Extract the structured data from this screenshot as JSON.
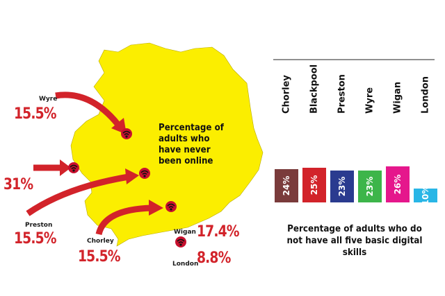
{
  "map": {
    "title": "Percentage of adults who have never been online",
    "colors": {
      "land": "#fbee00",
      "arrow": "#d2232a",
      "pin": "#c8102e"
    },
    "icon": "wifi-icon",
    "labels": {
      "wyre": {
        "name": "Wyre",
        "value": "15.5%"
      },
      "blackpool": {
        "value": "31%"
      },
      "preston": {
        "name": "Preston",
        "value": "15.5%"
      },
      "chorley": {
        "name": "Chorley",
        "value": "15.5%"
      },
      "wigan": {
        "name": "Wigan",
        "value": "17.4%"
      },
      "london": {
        "name": "London",
        "value": "8.8%"
      }
    }
  },
  "chart_data": {
    "type": "bar",
    "title": "Percentage of adults who do not have all five basic digital skills",
    "categories": [
      "Chorley",
      "Blackpool",
      "Preston",
      "Wyre",
      "Wigan",
      "London"
    ],
    "values": [
      24,
      25,
      23,
      23,
      26,
      10
    ],
    "value_labels": [
      "24%",
      "25%",
      "23%",
      "23%",
      "26%",
      "10%"
    ],
    "colors": [
      "#7a3b3b",
      "#d2232a",
      "#2a3b8f",
      "#3db54a",
      "#e5178c",
      "#29b6e6"
    ],
    "unit": "%",
    "grid": false,
    "legend": "none"
  }
}
